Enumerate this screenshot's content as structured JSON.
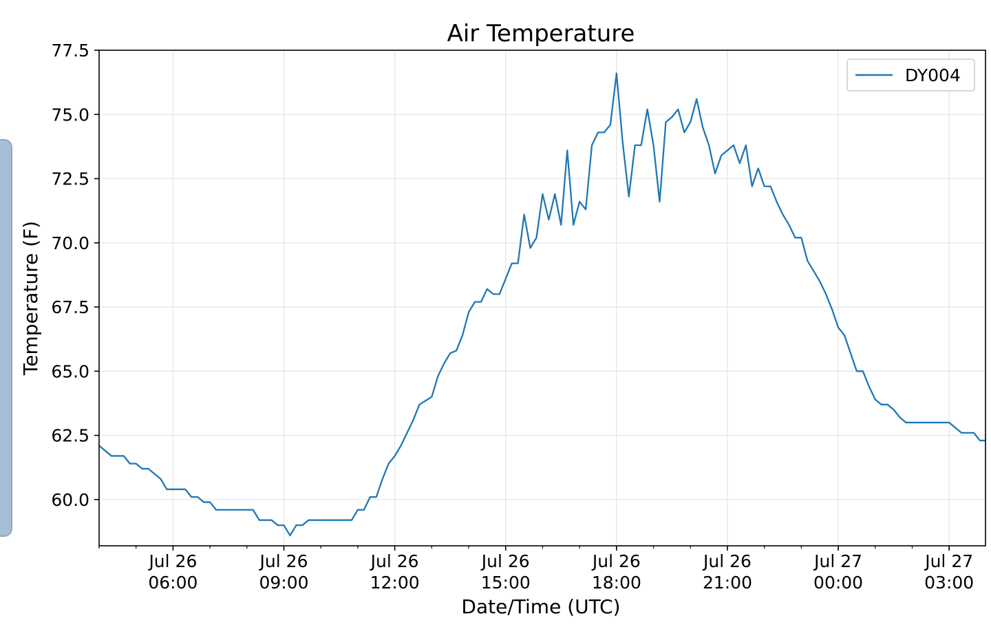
{
  "chart_data": {
    "type": "line",
    "title": "Air Temperature",
    "xlabel": "Date/Time (UTC)",
    "ylabel": "Temperature (F)",
    "ylim": [
      58.2,
      77.5
    ],
    "xlim": [
      "2023-07-26T04:00:00",
      "2023-07-27T03:59:00"
    ],
    "yticks": [
      "60.0",
      "62.5",
      "65.0",
      "67.5",
      "70.0",
      "72.5",
      "75.0",
      "77.5"
    ],
    "xticks": [
      {
        "date": "Jul 26",
        "time": "06:00"
      },
      {
        "date": "Jul 26",
        "time": "09:00"
      },
      {
        "date": "Jul 26",
        "time": "12:00"
      },
      {
        "date": "Jul 26",
        "time": "15:00"
      },
      {
        "date": "Jul 26",
        "time": "18:00"
      },
      {
        "date": "Jul 26",
        "time": "21:00"
      },
      {
        "date": "Jul 27",
        "time": "00:00"
      },
      {
        "date": "Jul 27",
        "time": "03:00"
      }
    ],
    "grid": true,
    "legend_position": "top-right",
    "series": [
      {
        "name": "DY004",
        "color": "#1f77b4",
        "x": [
          "2023-07-26T04:00:00",
          "2023-07-26T04:20:00",
          "2023-07-26T04:40:00",
          "2023-07-26T04:50:00",
          "2023-07-26T05:00:00",
          "2023-07-26T05:10:00",
          "2023-07-26T05:20:00",
          "2023-07-26T05:30:00",
          "2023-07-26T05:40:00",
          "2023-07-26T05:50:00",
          "2023-07-26T06:00:00",
          "2023-07-26T06:20:00",
          "2023-07-26T06:30:00",
          "2023-07-26T06:40:00",
          "2023-07-26T06:50:00",
          "2023-07-26T07:00:00",
          "2023-07-26T07:10:00",
          "2023-07-26T07:20:00",
          "2023-07-26T07:40:00",
          "2023-07-26T08:00:00",
          "2023-07-26T08:10:00",
          "2023-07-26T08:20:00",
          "2023-07-26T08:40:00",
          "2023-07-26T08:50:00",
          "2023-07-26T09:00:00",
          "2023-07-26T09:10:00",
          "2023-07-26T09:20:00",
          "2023-07-26T09:30:00",
          "2023-07-26T09:40:00",
          "2023-07-26T10:00:00",
          "2023-07-26T10:20:00",
          "2023-07-26T10:40:00",
          "2023-07-26T10:50:00",
          "2023-07-26T11:00:00",
          "2023-07-26T11:10:00",
          "2023-07-26T11:20:00",
          "2023-07-26T11:30:00",
          "2023-07-26T11:40:00",
          "2023-07-26T11:50:00",
          "2023-07-26T12:00:00",
          "2023-07-26T12:10:00",
          "2023-07-26T12:20:00",
          "2023-07-26T12:30:00",
          "2023-07-26T12:40:00",
          "2023-07-26T13:00:00",
          "2023-07-26T13:10:00",
          "2023-07-26T13:20:00",
          "2023-07-26T13:30:00",
          "2023-07-26T13:40:00",
          "2023-07-26T13:50:00",
          "2023-07-26T14:00:00",
          "2023-07-26T14:10:00",
          "2023-07-26T14:20:00",
          "2023-07-26T14:30:00",
          "2023-07-26T14:40:00",
          "2023-07-26T14:50:00",
          "2023-07-26T15:00:00",
          "2023-07-26T15:10:00",
          "2023-07-26T15:20:00",
          "2023-07-26T15:30:00",
          "2023-07-26T15:40:00",
          "2023-07-26T15:50:00",
          "2023-07-26T16:00:00",
          "2023-07-26T16:10:00",
          "2023-07-26T16:20:00",
          "2023-07-26T16:30:00",
          "2023-07-26T16:40:00",
          "2023-07-26T16:50:00",
          "2023-07-26T17:00:00",
          "2023-07-26T17:10:00",
          "2023-07-26T17:20:00",
          "2023-07-26T17:30:00",
          "2023-07-26T17:40:00",
          "2023-07-26T17:50:00",
          "2023-07-26T18:00:00",
          "2023-07-26T18:10:00",
          "2023-07-26T18:20:00",
          "2023-07-26T18:30:00",
          "2023-07-26T18:40:00",
          "2023-07-26T18:50:00",
          "2023-07-26T19:00:00",
          "2023-07-26T19:10:00",
          "2023-07-26T19:20:00",
          "2023-07-26T19:30:00",
          "2023-07-26T19:40:00",
          "2023-07-26T19:50:00",
          "2023-07-26T20:00:00",
          "2023-07-26T20:10:00",
          "2023-07-26T20:20:00",
          "2023-07-26T20:30:00",
          "2023-07-26T20:40:00",
          "2023-07-26T20:50:00",
          "2023-07-26T21:00:00",
          "2023-07-26T21:10:00",
          "2023-07-26T21:20:00",
          "2023-07-26T21:30:00",
          "2023-07-26T21:40:00",
          "2023-07-26T21:50:00",
          "2023-07-26T22:00:00",
          "2023-07-26T22:10:00",
          "2023-07-26T22:20:00",
          "2023-07-26T22:30:00",
          "2023-07-26T22:40:00",
          "2023-07-26T22:50:00",
          "2023-07-26T23:00:00",
          "2023-07-26T23:10:00",
          "2023-07-26T23:20:00",
          "2023-07-26T23:30:00",
          "2023-07-26T23:40:00",
          "2023-07-26T23:50:00",
          "2023-07-27T00:00:00",
          "2023-07-27T00:10:00",
          "2023-07-27T00:20:00",
          "2023-07-27T00:30:00",
          "2023-07-27T00:40:00",
          "2023-07-27T00:50:00",
          "2023-07-27T01:00:00",
          "2023-07-27T01:10:00",
          "2023-07-27T01:20:00",
          "2023-07-27T01:30:00",
          "2023-07-27T01:40:00",
          "2023-07-27T01:50:00",
          "2023-07-27T02:20:00",
          "2023-07-27T02:40:00",
          "2023-07-27T03:00:00",
          "2023-07-27T03:20:00",
          "2023-07-27T03:40:00",
          "2023-07-27T03:50:00",
          "2023-07-27T03:59:00"
        ],
        "values": [
          62.1,
          61.7,
          61.7,
          61.4,
          61.4,
          61.2,
          61.2,
          61.0,
          60.8,
          60.4,
          60.4,
          60.4,
          60.1,
          60.1,
          59.9,
          59.9,
          59.6,
          59.6,
          59.6,
          59.6,
          59.6,
          59.2,
          59.2,
          59.0,
          59.0,
          58.6,
          59.0,
          59.0,
          59.2,
          59.2,
          59.2,
          59.2,
          59.2,
          59.6,
          59.6,
          60.1,
          60.1,
          60.8,
          61.4,
          61.7,
          62.1,
          62.6,
          63.1,
          63.7,
          64.0,
          64.8,
          65.3,
          65.7,
          65.8,
          66.4,
          67.3,
          67.7,
          67.7,
          68.2,
          68.0,
          68.0,
          68.6,
          69.2,
          69.2,
          71.1,
          69.8,
          70.2,
          71.9,
          70.9,
          71.9,
          70.7,
          73.6,
          70.7,
          71.6,
          71.3,
          73.8,
          74.3,
          74.3,
          74.6,
          76.6,
          73.9,
          71.8,
          73.8,
          73.8,
          75.2,
          73.8,
          71.6,
          74.7,
          74.9,
          75.2,
          74.3,
          74.7,
          75.6,
          74.5,
          73.8,
          72.7,
          73.4,
          73.6,
          73.8,
          73.1,
          73.8,
          72.2,
          72.9,
          72.2,
          72.2,
          71.6,
          71.1,
          70.7,
          70.2,
          70.2,
          69.3,
          68.9,
          68.5,
          68.0,
          67.4,
          66.7,
          66.4,
          65.7,
          65.0,
          65.0,
          64.4,
          63.9,
          63.7,
          63.7,
          63.5,
          63.2,
          63.0,
          63.0,
          63.0,
          63.0,
          62.6,
          62.6,
          62.3,
          62.3
        ]
      }
    ]
  }
}
